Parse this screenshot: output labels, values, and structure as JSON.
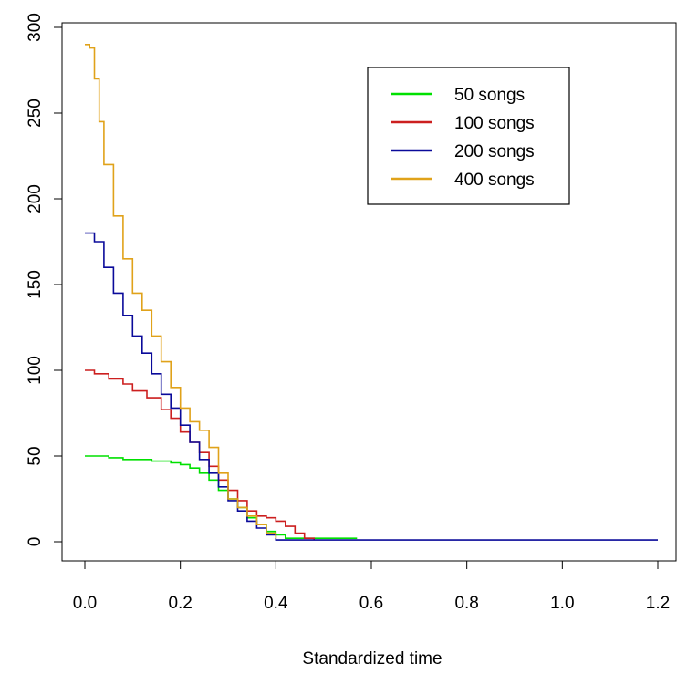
{
  "chart_data": {
    "type": "line",
    "title": "",
    "xlabel": "Standardized time",
    "ylabel": "",
    "xlim": [
      -0.05,
      1.22
    ],
    "ylim": [
      -12,
      300
    ],
    "x_ticks": [
      0.0,
      0.2,
      0.4,
      0.6,
      0.8,
      1.0,
      1.2
    ],
    "x_tick_labels": [
      "0.0",
      "0.2",
      "0.4",
      "0.6",
      "0.8",
      "1.0",
      "1.2"
    ],
    "y_ticks": [
      0,
      50,
      100,
      150,
      200,
      250,
      300
    ],
    "y_tick_labels": [
      "0",
      "50",
      "100",
      "150",
      "200",
      "250",
      "300"
    ],
    "grid": false,
    "legend_position": "top-right",
    "series": [
      {
        "name": "50 songs",
        "color": "#00e000",
        "x": [
          0.0,
          0.02,
          0.05,
          0.08,
          0.1,
          0.14,
          0.18,
          0.2,
          0.22,
          0.24,
          0.26,
          0.28,
          0.3,
          0.32,
          0.34,
          0.36,
          0.38,
          0.4,
          0.42,
          0.45,
          0.5,
          0.57
        ],
        "y": [
          50,
          50,
          49,
          48,
          48,
          47,
          46,
          45,
          43,
          40,
          36,
          30,
          25,
          20,
          14,
          10,
          6,
          4,
          2,
          2,
          2,
          2
        ]
      },
      {
        "name": "100 songs",
        "color": "#cc1f1f",
        "x": [
          0.0,
          0.02,
          0.05,
          0.08,
          0.1,
          0.13,
          0.16,
          0.18,
          0.2,
          0.22,
          0.24,
          0.26,
          0.28,
          0.3,
          0.32,
          0.34,
          0.36,
          0.38,
          0.4,
          0.42,
          0.44,
          0.46,
          0.48
        ],
        "y": [
          100,
          98,
          95,
          92,
          88,
          84,
          77,
          72,
          64,
          58,
          52,
          44,
          36,
          30,
          24,
          18,
          15,
          14,
          12,
          9,
          5,
          2,
          1
        ]
      },
      {
        "name": "200 songs",
        "color": "#0a0a9a",
        "x": [
          0.0,
          0.01,
          0.02,
          0.04,
          0.06,
          0.08,
          0.1,
          0.12,
          0.14,
          0.16,
          0.18,
          0.2,
          0.22,
          0.24,
          0.26,
          0.28,
          0.3,
          0.32,
          0.34,
          0.36,
          0.38,
          0.4,
          0.5,
          0.7,
          0.9,
          1.2
        ],
        "y": [
          180,
          180,
          175,
          160,
          145,
          132,
          120,
          110,
          98,
          86,
          78,
          68,
          58,
          48,
          40,
          32,
          24,
          18,
          12,
          8,
          4,
          1,
          1,
          1,
          1,
          1
        ]
      },
      {
        "name": "400 songs",
        "color": "#e0a21a",
        "x": [
          0.0,
          0.01,
          0.02,
          0.03,
          0.04,
          0.06,
          0.08,
          0.1,
          0.12,
          0.14,
          0.16,
          0.18,
          0.2,
          0.22,
          0.24,
          0.26,
          0.28,
          0.3,
          0.32,
          0.34,
          0.36,
          0.38,
          0.4
        ],
        "y": [
          290,
          288,
          270,
          245,
          220,
          190,
          165,
          145,
          135,
          120,
          105,
          90,
          78,
          70,
          65,
          55,
          40,
          25,
          20,
          15,
          10,
          5,
          2
        ]
      }
    ]
  }
}
